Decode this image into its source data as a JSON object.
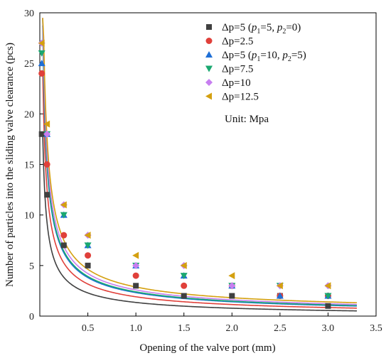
{
  "chart_data": {
    "type": "scatter",
    "xlabel": "Opening of the valve port (mm)",
    "ylabel": "Number of particles into the sliding valve clearance (pcs)",
    "xlim": [
      0,
      3.5
    ],
    "ylim": [
      0,
      30
    ],
    "x_ticks": [
      0.5,
      1.0,
      1.5,
      2.0,
      2.5,
      3.0,
      3.5
    ],
    "x_tick_labels": [
      "0.5",
      "1.0",
      "1.5",
      "2.0",
      "2.5",
      "3.0",
      "3.5"
    ],
    "y_ticks": [
      0,
      5,
      10,
      15,
      20,
      25,
      30
    ],
    "y_tick_labels": [
      "0",
      "5",
      "10",
      "15",
      "20",
      "25",
      "30"
    ],
    "legend_position": "top-right",
    "unit_note": "Unit: Mpa",
    "fit_lines": true,
    "series": [
      {
        "name_main": "Δp=5 (",
        "name_p1_sym": "p",
        "name_p1_sub": "1",
        "name_p1_val": "=5, ",
        "name_p2_sym": "p",
        "name_p2_sub": "2",
        "name_p2_val": "=0)",
        "marker": "square",
        "color": "#404040",
        "x": [
          0.02,
          0.075,
          0.25,
          0.5,
          1.0,
          1.5,
          2.0,
          2.5,
          3.0
        ],
        "y": [
          18,
          12,
          7,
          5,
          3,
          2,
          2,
          2,
          1
        ],
        "fit_a": 1.45,
        "fit_b": 0.5
      },
      {
        "name": "Δp=2.5",
        "marker": "circle",
        "color": "#e0403a",
        "x": [
          0.02,
          0.075,
          0.25,
          0.5,
          1.0,
          1.5,
          2.0,
          2.5,
          3.0
        ],
        "y": [
          24,
          15,
          8,
          6,
          4,
          3,
          3,
          2,
          2
        ],
        "fit_a": 1.95,
        "fit_b": 0.8
      },
      {
        "name_main": "Δp=5 (",
        "name_p1_sym": "p",
        "name_p1_sub": "1",
        "name_p1_val": "=10, ",
        "name_p2_sym": "p",
        "name_p2_sub": "2",
        "name_p2_val": "=5)",
        "marker": "triangle-up",
        "color": "#1f6fd6",
        "x": [
          0.02,
          0.075,
          0.25,
          0.5,
          1.0,
          1.5,
          2.0,
          2.5,
          3.0
        ],
        "y": [
          25,
          18,
          10,
          7,
          5,
          4,
          3,
          2,
          2
        ],
        "fit_a": 2.3,
        "fit_b": 1.1
      },
      {
        "name": "Δp=7.5",
        "marker": "triangle-down",
        "color": "#1aa870",
        "x": [
          0.02,
          0.075,
          0.25,
          0.5,
          1.0,
          1.5,
          2.0,
          2.5,
          3.0
        ],
        "y": [
          26,
          18,
          10,
          7,
          5,
          4,
          3,
          3,
          2
        ],
        "fit_a": 2.35,
        "fit_b": 1.25
      },
      {
        "name": "Δp=10",
        "marker": "diamond",
        "color": "#c77ff0",
        "x": [
          0.02,
          0.075,
          0.25,
          0.5,
          1.0,
          1.5,
          2.0,
          2.5,
          3.0
        ],
        "y": [
          27,
          18,
          11,
          8,
          5,
          5,
          3,
          3,
          3
        ],
        "fit_a": 2.5,
        "fit_b": 1.45
      },
      {
        "name": "Δp=12.5",
        "marker": "triangle-left",
        "color": "#d4a010",
        "x": [
          0.02,
          0.075,
          0.25,
          0.5,
          1.0,
          1.5,
          2.0,
          2.5,
          3.0
        ],
        "y": [
          27,
          19,
          11,
          8,
          6,
          5,
          4,
          3,
          3
        ],
        "fit_a": 2.7,
        "fit_b": 1.9
      }
    ]
  }
}
